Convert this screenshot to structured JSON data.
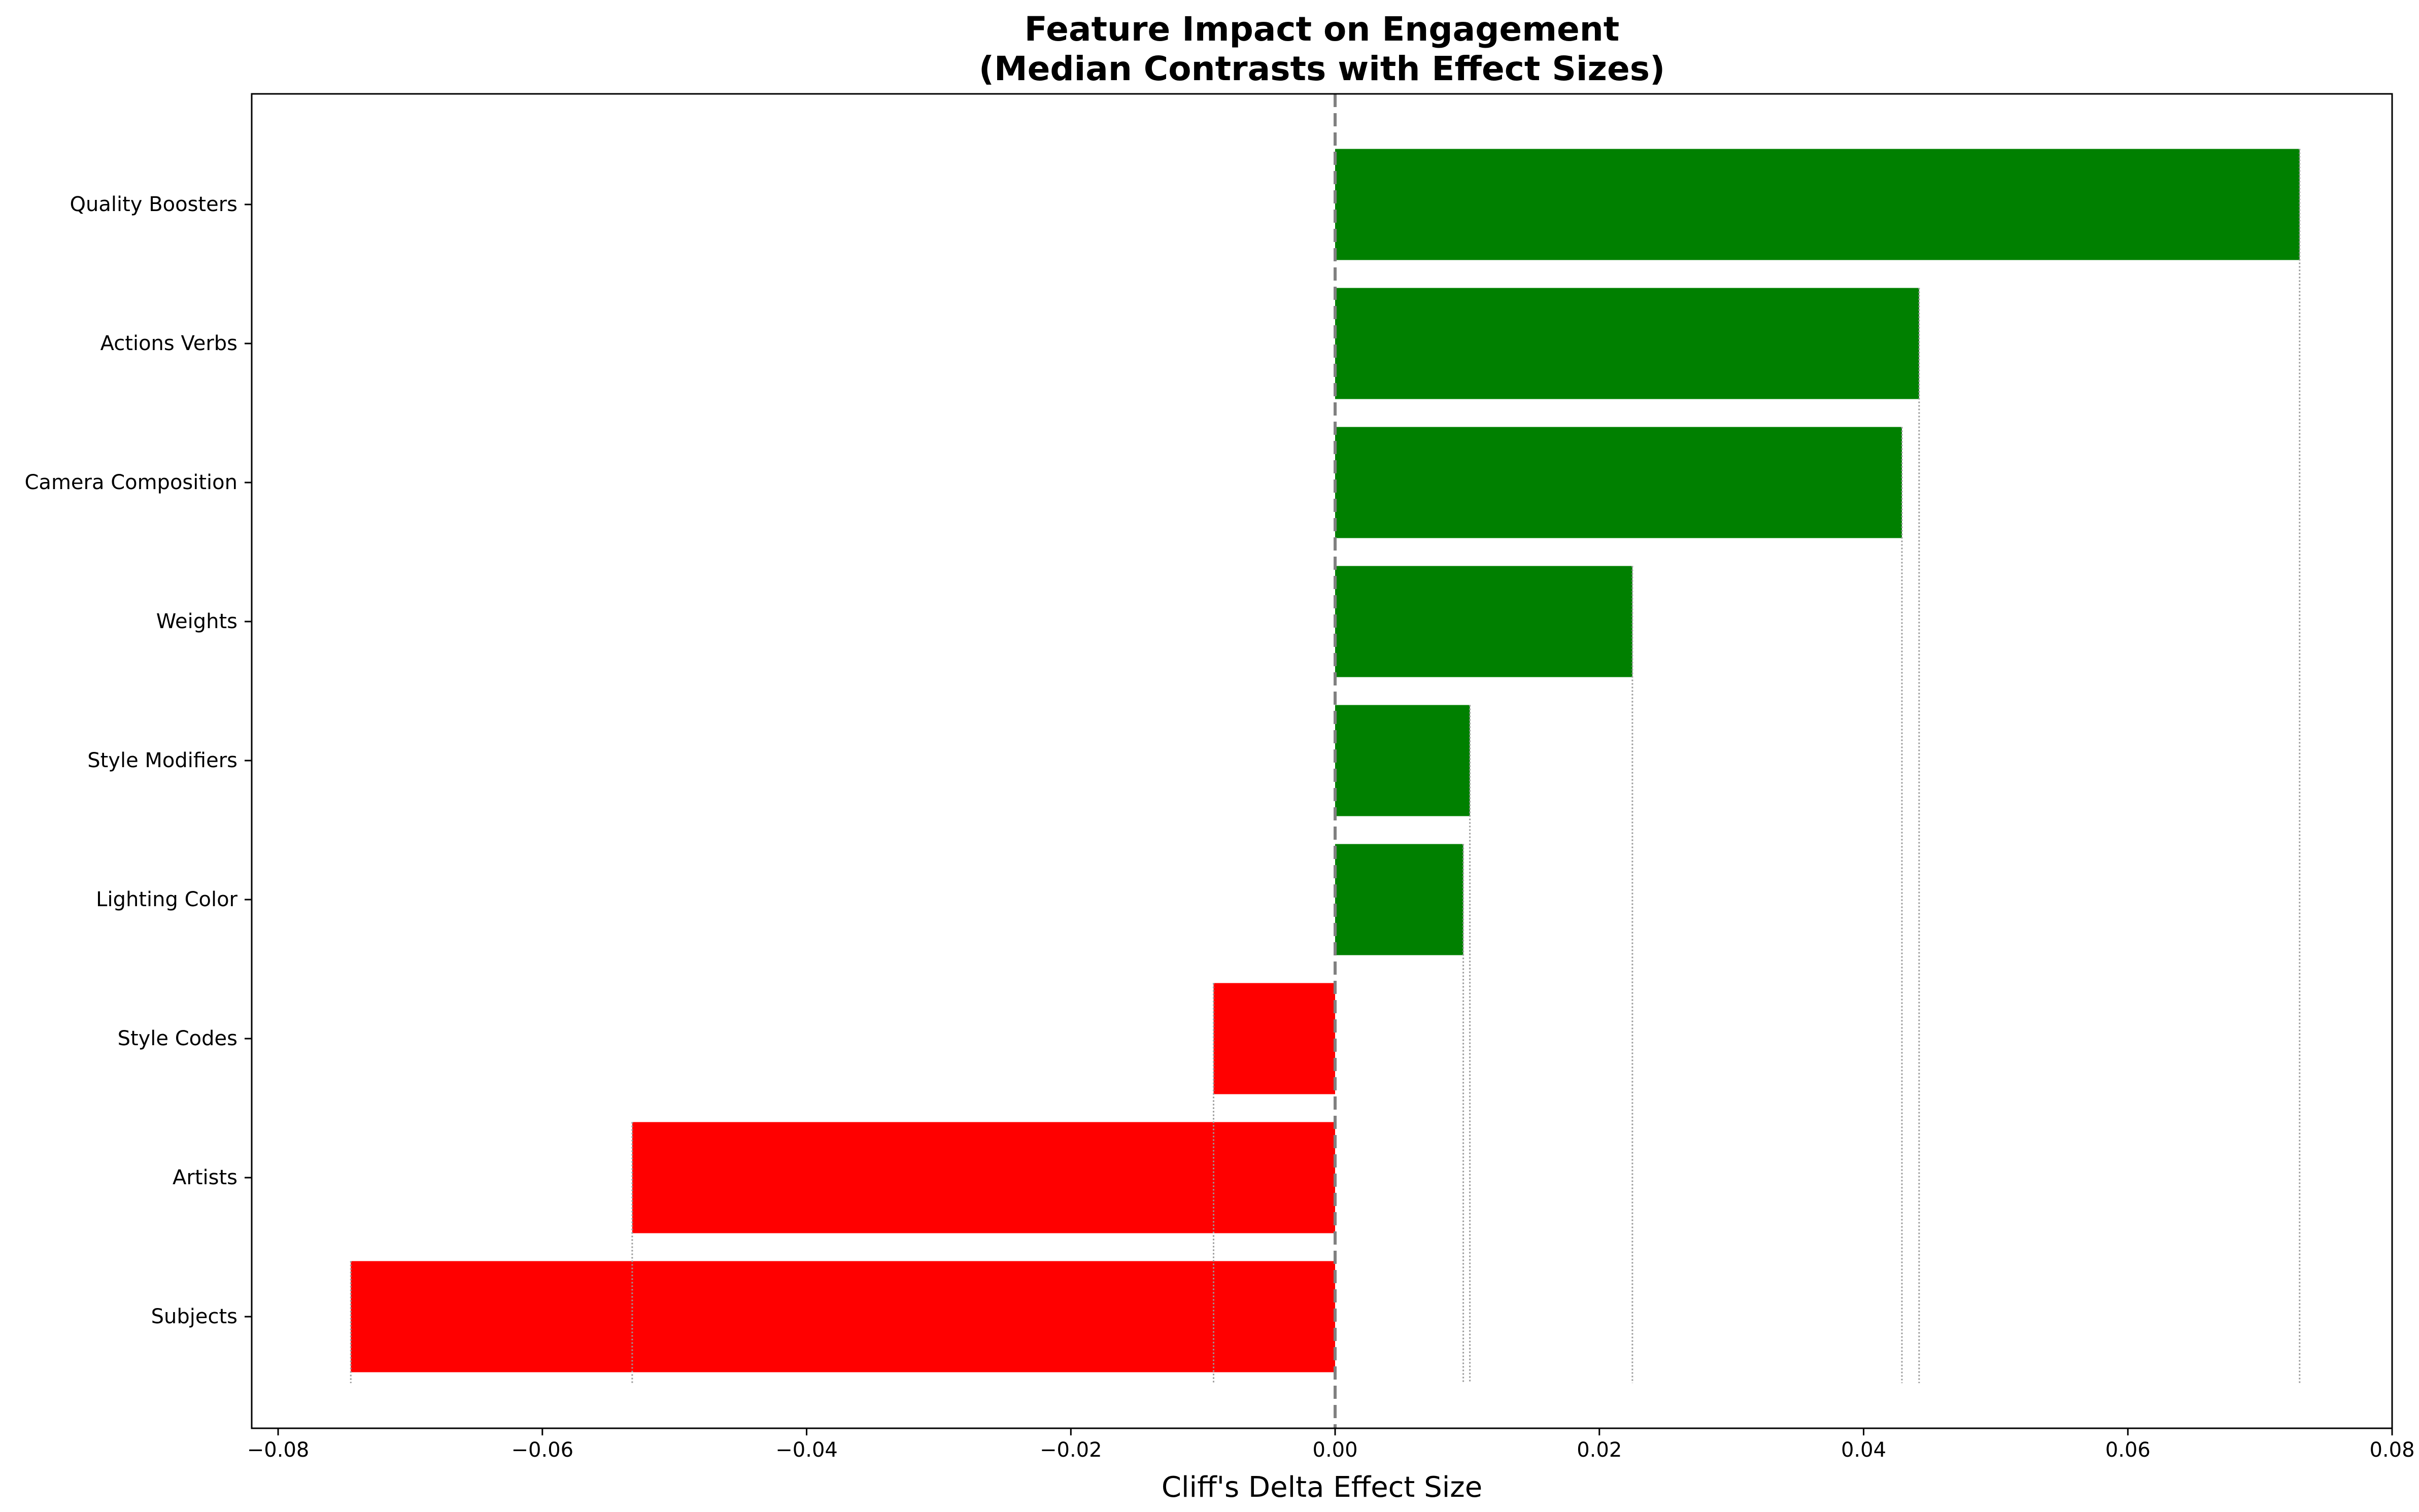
{
  "chart_data": {
    "type": "bar",
    "orientation": "horizontal",
    "title": "Feature Impact on Engagement",
    "subtitle": "(Median Contrasts with Effect Sizes)",
    "xlabel": "Cliff's Delta Effect Size",
    "ylabel": "",
    "xlim": [
      -0.082,
      0.08
    ],
    "x_ticks": [
      -0.08,
      -0.06,
      -0.04,
      -0.02,
      0.0,
      0.02,
      0.04,
      0.06,
      0.08
    ],
    "x_tick_labels": [
      "−0.08",
      "−0.06",
      "−0.04",
      "−0.02",
      "0.00",
      "0.02",
      "0.04",
      "0.06",
      "0.08"
    ],
    "categories": [
      "Quality Boosters",
      "Actions Verbs",
      "Camera Composition",
      "Weights",
      "Style Modifiers",
      "Lighting Color",
      "Style Codes",
      "Artists",
      "Subjects"
    ],
    "values": [
      0.073,
      0.0442,
      0.0429,
      0.0225,
      0.0102,
      0.0097,
      -0.0092,
      -0.0532,
      -0.0745
    ],
    "positive_color": "#008000",
    "negative_color": "#ff0000",
    "zero_line": true,
    "grid": false
  }
}
